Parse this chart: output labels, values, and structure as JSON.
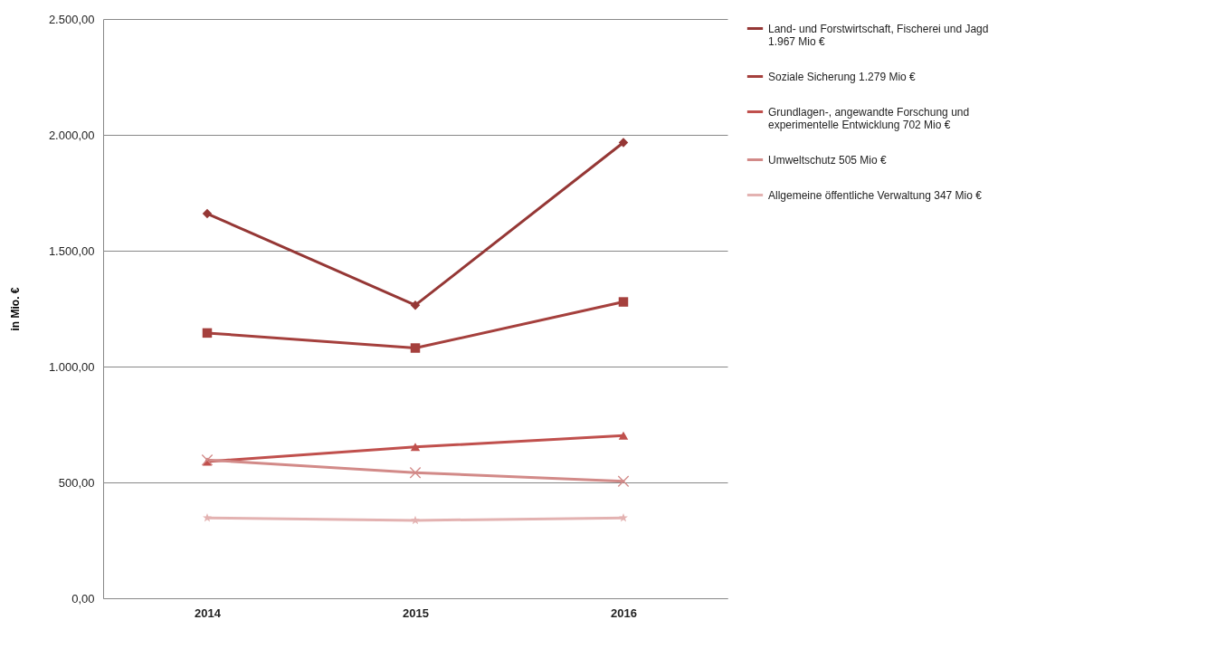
{
  "chart_data": {
    "type": "line",
    "categories": [
      "2014",
      "2015",
      "2016"
    ],
    "ylabel": "in Mio. €",
    "ylim": [
      0,
      2500
    ],
    "yticks": [
      {
        "value": 0,
        "label": "0,00"
      },
      {
        "value": 500,
        "label": "500,00"
      },
      {
        "value": 1000,
        "label": "1.000,00"
      },
      {
        "value": 1500,
        "label": "1.500,00"
      },
      {
        "value": 2000,
        "label": "2.000,00"
      },
      {
        "value": 2500,
        "label": "2.500,00"
      }
    ],
    "grid": "y",
    "legend": "right",
    "series": [
      {
        "name": "Land- und Forstwirtschaft, Fischerei und Jagd  1.967 Mio €",
        "color": "#953735",
        "marker": "diamond",
        "values": [
          1660,
          1265,
          1967
        ]
      },
      {
        "name": "Soziale Sicherung  1.279 Mio €",
        "color": "#a5403d",
        "marker": "square",
        "values": [
          1145,
          1080,
          1279
        ]
      },
      {
        "name": "Grundlagen-, angewandte Forschung und experimentelle Entwicklung  702 Mio €",
        "color": "#c0504d",
        "marker": "triangle",
        "values": [
          590,
          653,
          702
        ]
      },
      {
        "name": "Umweltschutz   505 Mio €",
        "color": "#d28a88",
        "marker": "cross",
        "values": [
          597,
          542,
          505
        ]
      },
      {
        "name": "Allgemeine öffentliche Verwaltung  347 Mio €",
        "color": "#e3b2b1",
        "marker": "star",
        "values": [
          347,
          336,
          347
        ]
      }
    ]
  }
}
